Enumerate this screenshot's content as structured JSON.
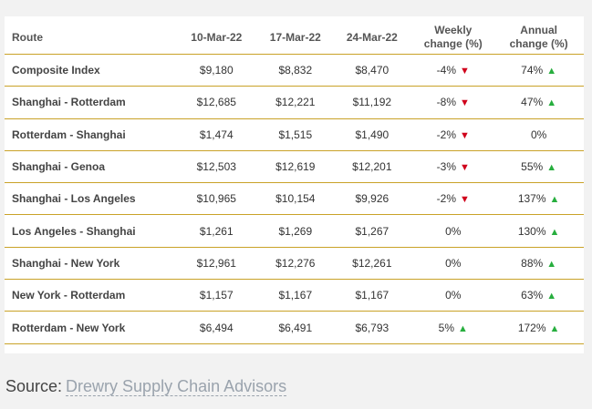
{
  "table": {
    "headers": {
      "route": "Route",
      "d1": "10-Mar-22",
      "d2": "17-Mar-22",
      "d3": "24-Mar-22",
      "weekly_line1": "Weekly",
      "weekly_line2": "change (%)",
      "annual_line1": "Annual",
      "annual_line2": "change (%)"
    },
    "rows": [
      {
        "route": "Composite Index",
        "d1": "$9,180",
        "d2": "$8,832",
        "d3": "$8,470",
        "weekly": "-4%",
        "weekly_dir": "down",
        "annual": "74%",
        "annual_dir": "up"
      },
      {
        "route": "Shanghai - Rotterdam",
        "d1": "$12,685",
        "d2": "$12,221",
        "d3": "$11,192",
        "weekly": "-8%",
        "weekly_dir": "down",
        "annual": "47%",
        "annual_dir": "up"
      },
      {
        "route": "Rotterdam - Shanghai",
        "d1": "$1,474",
        "d2": "$1,515",
        "d3": "$1,490",
        "weekly": "-2%",
        "weekly_dir": "down",
        "annual": "0%",
        "annual_dir": "none"
      },
      {
        "route": "Shanghai - Genoa",
        "d1": "$12,503",
        "d2": "$12,619",
        "d3": "$12,201",
        "weekly": "-3%",
        "weekly_dir": "down",
        "annual": "55%",
        "annual_dir": "up"
      },
      {
        "route": "Shanghai - Los Angeles",
        "d1": "$10,965",
        "d2": "$10,154",
        "d3": "$9,926",
        "weekly": "-2%",
        "weekly_dir": "down",
        "annual": "137%",
        "annual_dir": "up"
      },
      {
        "route": "Los Angeles - Shanghai",
        "d1": "$1,261",
        "d2": "$1,269",
        "d3": "$1,267",
        "weekly": "0%",
        "weekly_dir": "none",
        "annual": "130%",
        "annual_dir": "up"
      },
      {
        "route": "Shanghai - New York",
        "d1": "$12,961",
        "d2": "$12,276",
        "d3": "$12,261",
        "weekly": "0%",
        "weekly_dir": "none",
        "annual": "88%",
        "annual_dir": "up"
      },
      {
        "route": "New York - Rotterdam",
        "d1": "$1,157",
        "d2": "$1,167",
        "d3": "$1,167",
        "weekly": "0%",
        "weekly_dir": "none",
        "annual": "63%",
        "annual_dir": "up"
      },
      {
        "route": "Rotterdam - New York",
        "d1": "$6,494",
        "d2": "$6,491",
        "d3": "$6,793",
        "weekly": "5%",
        "weekly_dir": "up",
        "annual": "172%",
        "annual_dir": "up"
      }
    ]
  },
  "source": {
    "prefix": "Source:",
    "link_text": "Drewry Supply Chain Advisors"
  },
  "icons": {
    "up": "triangle-up-icon",
    "down": "triangle-down-icon"
  },
  "colors": {
    "accent_line": "#c9a227",
    "up": "#27ae3e",
    "down": "#d0021b",
    "link": "#9aa3ad"
  }
}
